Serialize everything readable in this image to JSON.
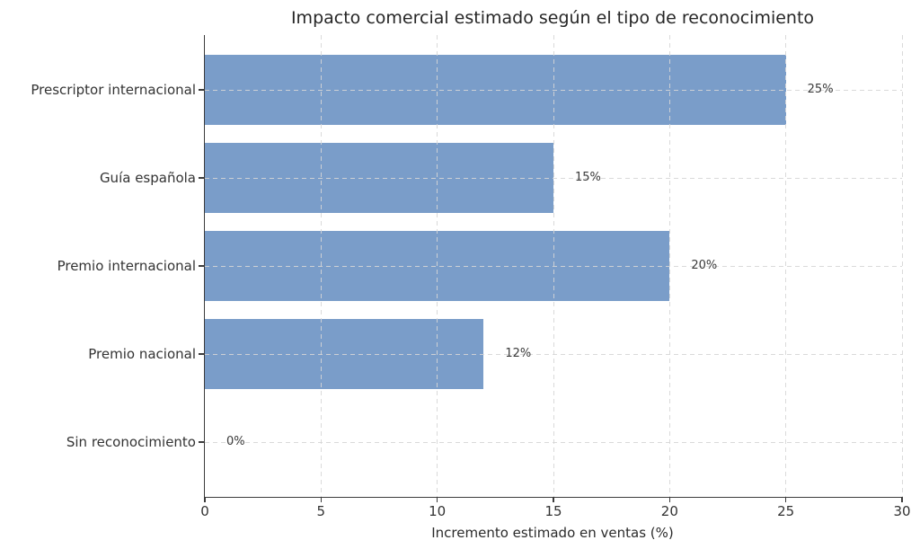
{
  "figure": {
    "background": "#ffffff"
  },
  "chart_data": {
    "type": "bar",
    "orientation": "horizontal",
    "title": "Impacto comercial estimado según el tipo de reconocimiento",
    "xlabel": "Incremento estimado en ventas (%)",
    "ylabel": "",
    "categories": [
      "Prescriptor internacional",
      "Guía española",
      "Premio internacional",
      "Premio nacional",
      "Sin reconocimiento"
    ],
    "values": [
      25,
      15,
      20,
      12,
      0
    ],
    "value_labels": [
      "25%",
      "15%",
      "20%",
      "12%",
      "0%"
    ],
    "xlim": [
      0,
      30
    ],
    "xticks": [
      0,
      5,
      10,
      15,
      20,
      25,
      30
    ],
    "xtick_labels": [
      "0",
      "5",
      "10",
      "15",
      "20",
      "25",
      "30"
    ],
    "grid": {
      "visible": true,
      "style": "dashed",
      "axes": "both"
    },
    "legend": false,
    "colors": {
      "bar": "#7a9dc9",
      "grid": "#d6d6d6",
      "spine": "#3c3c3c",
      "title_text": "#262626",
      "tick_text": "#333333",
      "value_text": "#3a3a3a"
    }
  }
}
